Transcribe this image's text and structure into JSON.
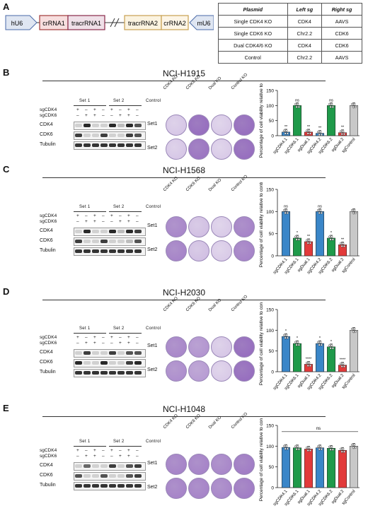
{
  "panels": {
    "A": "A",
    "B": "B",
    "C": "C",
    "D": "D",
    "E": "E"
  },
  "construct": {
    "hU6": "hU6",
    "crRNA1": "crRNA1",
    "tracrRNA1": "tracrRNA1",
    "tracrRNA2": "tracrRNA2",
    "crRNA2": "crRNA2",
    "mU6": "mU6"
  },
  "plasmid_table": {
    "headers": [
      "Plasmid",
      "Left sg",
      "Right sg"
    ],
    "rows": [
      [
        "Single CDK4 KO",
        "CDK4",
        "AAVS"
      ],
      [
        "Single CDK6 KO",
        "Chr2.2",
        "CDK6"
      ],
      [
        "Dual CDK4/6 KO",
        "CDK4",
        "CDK6"
      ],
      [
        "Control",
        "Chr2.2",
        "AAVS"
      ]
    ]
  },
  "western": {
    "sgCDK4": "sgCDK4",
    "sgCDK6": "sgCDK6",
    "set1": "Set 1",
    "set2": "Set 2",
    "control": "Control",
    "cdk4": "CDK4",
    "cdk6": "CDK6",
    "tubulin": "Tubulin",
    "sgCDK4_signs": [
      "+",
      "–",
      "+",
      "–",
      "+",
      "–",
      "+",
      "–"
    ],
    "sgCDK6_signs": [
      "–",
      "+",
      "+",
      "–",
      "–",
      "+",
      "+",
      "–"
    ]
  },
  "colony": {
    "cols": [
      "CDK4 KO",
      "CDK6 KO",
      "Dual KO",
      "Control KO"
    ],
    "rows": [
      "Set1",
      "Set2"
    ]
  },
  "cell_lines": [
    "NCI-H1915",
    "NCI-H1568",
    "NCI-H2030",
    "NCI-H1048"
  ],
  "chart_data": [
    {
      "type": "bar",
      "categories": [
        "sgCDK4.1",
        "sgCDK6.1",
        "sgDual.1",
        "sgCDK4.2",
        "sgCDK6.2",
        "sgDual.2",
        "sgControl"
      ],
      "values": [
        12,
        100,
        12,
        8,
        100,
        10,
        100
      ],
      "ylabel": "Percentage of cell viability relative to control",
      "ylim": [
        0,
        150
      ],
      "yticks": [
        0,
        50,
        100,
        150
      ],
      "significance": [
        "**",
        "ns",
        "**",
        "**",
        "ns",
        "**",
        ""
      ],
      "colors": [
        "#3a86c8",
        "#1f9a4a",
        "#e23a3a",
        "#3a86c8",
        "#1f9a4a",
        "#e23a3a",
        "#c8c8c8"
      ]
    },
    {
      "type": "bar",
      "categories": [
        "sgCDK4.1",
        "sgCDK6.1",
        "sgDual.1",
        "sgCDK4.2",
        "sgCDK6.2",
        "sgDual.2",
        "sgControl"
      ],
      "values": [
        100,
        40,
        32,
        100,
        40,
        25,
        100
      ],
      "ylabel": "Percentage of cell viability relative to control",
      "ylim": [
        0,
        150
      ],
      "yticks": [
        0,
        50,
        100,
        150
      ],
      "significance": [
        "ns",
        "*",
        "**",
        "ns",
        "*",
        "**",
        ""
      ],
      "colors": [
        "#3a86c8",
        "#1f9a4a",
        "#e23a3a",
        "#3a86c8",
        "#1f9a4a",
        "#e23a3a",
        "#c8c8c8"
      ]
    },
    {
      "type": "bar",
      "categories": [
        "sgCDK4.1",
        "sgCDK6.1",
        "sgDual.1",
        "sgCDK4.2",
        "sgCDK6.2",
        "sgDual.2",
        "sgControl"
      ],
      "values": [
        85,
        68,
        18,
        68,
        60,
        16,
        100
      ],
      "ylabel": "Percentage of cell viability relative to control",
      "ylim": [
        0,
        150
      ],
      "yticks": [
        0,
        50,
        100,
        150
      ],
      "significance": [
        "*",
        "*",
        "****",
        "*",
        "*",
        "****",
        ""
      ],
      "colors": [
        "#3a86c8",
        "#1f9a4a",
        "#e23a3a",
        "#3a86c8",
        "#1f9a4a",
        "#e23a3a",
        "#c8c8c8"
      ]
    },
    {
      "type": "bar",
      "categories": [
        "sgCDK4.1",
        "sgCDK6.1",
        "sgDual.1",
        "sgCDK4.2",
        "sgCDK6.2",
        "sgDual.2",
        "sgControl"
      ],
      "values": [
        97,
        96,
        93,
        96,
        95,
        90,
        100
      ],
      "ylabel": "Percentage of cell viability relative to control",
      "ylim": [
        0,
        150
      ],
      "yticks": [
        0,
        50,
        100,
        150
      ],
      "significance": [],
      "bracket_label": "ns",
      "colors": [
        "#3a86c8",
        "#1f9a4a",
        "#e23a3a",
        "#3a86c8",
        "#1f9a4a",
        "#e23a3a",
        "#c8c8c8"
      ]
    }
  ]
}
